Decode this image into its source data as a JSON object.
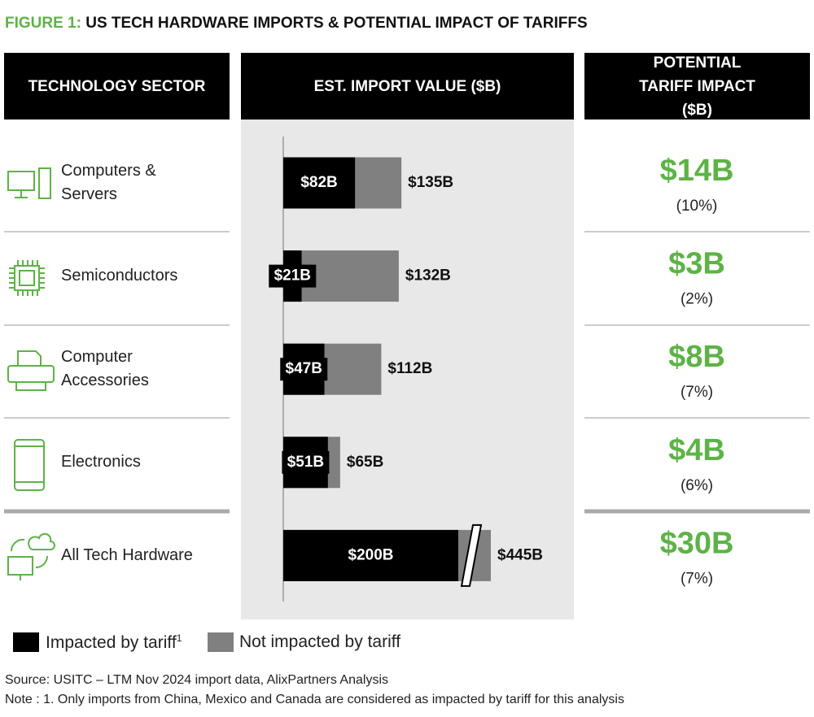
{
  "title_prefix": "FIGURE 1:",
  "title": "US TECH HARDWARE IMPORTS & POTENTIAL IMPACT OF TARIFFS",
  "headers": [
    "TECHNOLOGY SECTOR",
    "EST. IMPORT VALUE ($B)",
    "POTENTIAL TARIFF IMPACT ($B)"
  ],
  "chart_data": {
    "type": "bar",
    "categories": [
      "Computers & Servers",
      "Semiconductors",
      "Computer Accessories",
      "Electronics",
      "All Tech Hardware"
    ],
    "series": [
      {
        "name": "Impacted by tariff",
        "color": "#000000",
        "values": [
          82,
          21,
          47,
          51,
          200
        ],
        "value_labels": [
          "$82B",
          "$21B",
          "$47B",
          "$51B",
          "$200B"
        ]
      },
      {
        "name": "Not impacted by tariff",
        "color": "#808080"
      }
    ],
    "totals": {
      "values": [
        135,
        132,
        112,
        65,
        445
      ],
      "value_labels": [
        "$135B",
        "$132B",
        "$112B",
        "$65B",
        "$445B"
      ]
    },
    "broken": [
      false,
      false,
      false,
      false,
      true
    ],
    "footnote_mark": "1"
  },
  "impact": [
    "$14B",
    "$3B",
    "$8B",
    "$4B",
    "$30B"
  ],
  "impact_share": [
    "(10%)",
    "(2%)",
    "(7%)",
    "(6%)",
    "(7%)"
  ],
  "source": "Source: USITC – LTM Nov 2024 import data, AlixPartners Analysis",
  "note": "Note : 1. Only imports from China, Mexico and Canada are considered as impacted by tariff for this analysis"
}
